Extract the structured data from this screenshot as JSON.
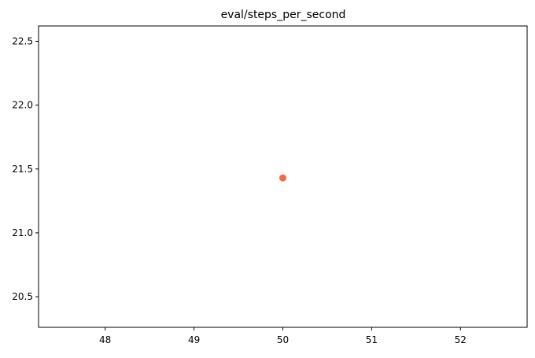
{
  "chart_data": {
    "type": "scatter",
    "title": "eval/steps_per_second",
    "xlabel": "",
    "ylabel": "",
    "xlim": [
      47.25,
      52.75
    ],
    "ylim": [
      20.26,
      22.62
    ],
    "x_ticks": [
      48,
      49,
      50,
      51,
      52
    ],
    "y_ticks": [
      20.5,
      21.0,
      21.5,
      22.0,
      22.5
    ],
    "x_tick_labels": [
      "48",
      "49",
      "50",
      "51",
      "52"
    ],
    "y_tick_labels": [
      "20.5",
      "21.0",
      "21.5",
      "22.0",
      "22.5"
    ],
    "grid": false,
    "series": [
      {
        "color": "#f46a3e",
        "points": [
          {
            "x": 50,
            "y": 21.43
          }
        ]
      }
    ]
  }
}
